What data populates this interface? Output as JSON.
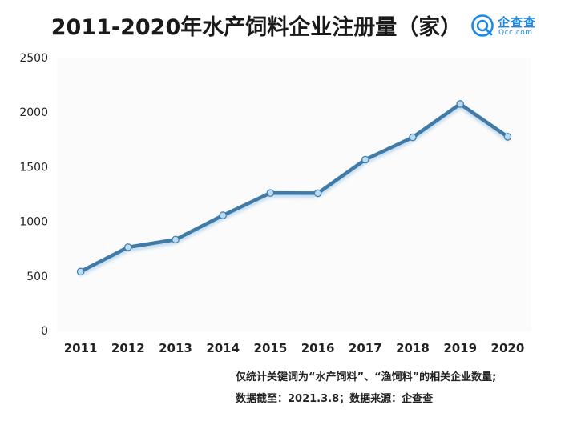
{
  "title": "2011-2020年水产饲料企业注册量（家）",
  "brand": {
    "name": "企查查",
    "domain": "Qcc.com",
    "color": "#1e88e5"
  },
  "chart_data": {
    "type": "line",
    "categories": [
      "2011",
      "2012",
      "2013",
      "2014",
      "2015",
      "2016",
      "2017",
      "2018",
      "2019",
      "2020"
    ],
    "series": [
      {
        "values": [
          540,
          763,
          833,
          1055,
          1260,
          1258,
          1565,
          1770,
          2075,
          1775
        ],
        "color": "#3f7aa6",
        "marker_color": "#b9dcf4"
      }
    ],
    "ylim": [
      0,
      2500
    ],
    "yticks": [
      0,
      500,
      1000,
      1500,
      2000,
      2500
    ],
    "grid": false,
    "legend": "none"
  },
  "notes": {
    "line1": "仅统计关键词为“水产饲料”、“渔饲料”的相关企业数量;",
    "line2": "数据截至：2021.3.8；数据来源：企查查"
  }
}
